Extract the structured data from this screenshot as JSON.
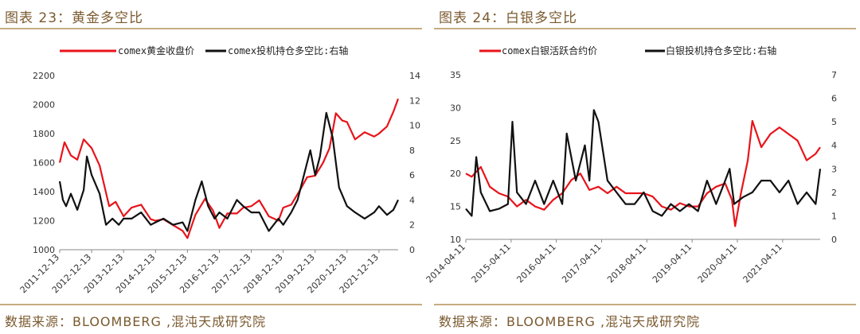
{
  "chart_data": [
    {
      "type": "line",
      "figure_title": "图表 23：黄金多空比",
      "source": "数据来源：BLOOMBERG ,混沌天成研究院",
      "legend_position": "top",
      "series": [
        {
          "name": "comex黄金收盘价",
          "axis": "left",
          "color": "#e8141b",
          "x": [
            2011.95,
            2012.1,
            2012.3,
            2012.5,
            2012.7,
            2012.95,
            2013.2,
            2013.5,
            2013.7,
            2013.95,
            2014.2,
            2014.5,
            2014.8,
            2014.95,
            2015.2,
            2015.5,
            2015.8,
            2015.95,
            2016.2,
            2016.5,
            2016.75,
            2016.95,
            2017.2,
            2017.5,
            2017.7,
            2017.95,
            2018.2,
            2018.5,
            2018.8,
            2018.95,
            2019.2,
            2019.5,
            2019.7,
            2019.95,
            2020.2,
            2020.4,
            2020.6,
            2020.8,
            2020.95,
            2021.2,
            2021.5,
            2021.8,
            2021.95,
            2022.2,
            2022.4,
            2022.55
          ],
          "values": [
            1600,
            1740,
            1650,
            1620,
            1760,
            1700,
            1580,
            1300,
            1330,
            1230,
            1290,
            1310,
            1210,
            1200,
            1210,
            1170,
            1130,
            1080,
            1240,
            1350,
            1270,
            1150,
            1250,
            1250,
            1290,
            1300,
            1340,
            1230,
            1200,
            1290,
            1310,
            1420,
            1500,
            1510,
            1600,
            1700,
            1940,
            1890,
            1880,
            1760,
            1810,
            1780,
            1800,
            1850,
            1950,
            2040
          ]
        },
        {
          "name": "comex投机持仓多空比:右轴",
          "axis": "right",
          "color": "#111111",
          "x": [
            2011.95,
            2012.05,
            2012.15,
            2012.3,
            2012.5,
            2012.7,
            2012.8,
            2012.95,
            2013.2,
            2013.4,
            2013.6,
            2013.8,
            2013.95,
            2014.2,
            2014.5,
            2014.8,
            2014.95,
            2015.2,
            2015.5,
            2015.8,
            2015.95,
            2016.2,
            2016.4,
            2016.6,
            2016.8,
            2016.95,
            2017.2,
            2017.5,
            2017.7,
            2017.95,
            2018.2,
            2018.5,
            2018.8,
            2018.95,
            2019.2,
            2019.4,
            2019.6,
            2019.8,
            2019.95,
            2020.1,
            2020.3,
            2020.5,
            2020.7,
            2020.95,
            2021.2,
            2021.5,
            2021.8,
            2021.95,
            2022.2,
            2022.4,
            2022.55
          ],
          "values": [
            5.5,
            4.0,
            3.5,
            4.5,
            3.2,
            4.8,
            7.5,
            6.0,
            4.5,
            2.0,
            2.5,
            2.0,
            2.5,
            2.5,
            3.0,
            2.0,
            2.2,
            2.5,
            2.0,
            2.2,
            1.5,
            4.0,
            5.5,
            3.5,
            2.5,
            3.0,
            2.5,
            4.0,
            3.5,
            3.0,
            3.0,
            1.5,
            2.5,
            2.0,
            3.0,
            4.0,
            6.0,
            8.0,
            6.0,
            7.5,
            11.0,
            9.0,
            5.0,
            3.5,
            3.0,
            2.5,
            3.0,
            3.5,
            2.8,
            3.2,
            4.0
          ]
        }
      ],
      "x_ticks": [
        "2011-12-13",
        "2012-12-13",
        "2013-12-13",
        "2014-12-13",
        "2015-12-13",
        "2016-12-13",
        "2017-12-13",
        "2018-12-13",
        "2019-12-13",
        "2020-12-13",
        "2021-12-13"
      ],
      "x_tick_values": [
        2011.95,
        2012.95,
        2013.95,
        2014.95,
        2015.95,
        2016.95,
        2017.95,
        2018.95,
        2019.95,
        2020.95,
        2021.95
      ],
      "x_range": [
        2011.95,
        2022.55
      ],
      "y_left_ticks": [
        1000,
        1200,
        1400,
        1600,
        1800,
        2000,
        2200
      ],
      "y_left_range": [
        1000,
        2200
      ],
      "y_right_ticks": [
        0,
        2,
        4,
        6,
        8,
        10,
        12,
        14
      ],
      "y_right_range": [
        0,
        14
      ]
    },
    {
      "type": "line",
      "figure_title": "图表 24：白银多空比",
      "source": "数据来源：BLOOMBERG ,混沌天成研究院",
      "legend_position": "top",
      "series": [
        {
          "name": "comex白银活跃合约价",
          "axis": "left",
          "color": "#e8141b",
          "x": [
            2014.27,
            2014.4,
            2014.6,
            2014.8,
            2015.0,
            2015.2,
            2015.4,
            2015.6,
            2015.8,
            2016.0,
            2016.2,
            2016.4,
            2016.6,
            2016.8,
            2017.0,
            2017.2,
            2017.4,
            2017.6,
            2017.8,
            2018.0,
            2018.2,
            2018.4,
            2018.6,
            2018.8,
            2019.0,
            2019.2,
            2019.4,
            2019.6,
            2019.8,
            2020.0,
            2020.15,
            2020.22,
            2020.35,
            2020.5,
            2020.6,
            2020.8,
            2021.0,
            2021.2,
            2021.4,
            2021.6,
            2021.8,
            2022.0,
            2022.1
          ],
          "values": [
            20,
            19.5,
            21,
            18,
            17,
            16.5,
            15,
            16,
            15,
            14.5,
            16,
            17,
            19,
            20,
            17.5,
            18,
            17,
            18,
            17,
            17,
            17,
            16.5,
            15,
            14.5,
            15.5,
            15,
            15,
            17,
            18,
            18.5,
            16,
            12,
            17,
            22,
            28,
            24,
            26,
            27,
            26,
            25,
            22,
            23,
            24
          ]
        },
        {
          "name": "白银投机持仓多空比:右轴",
          "axis": "right",
          "color": "#111111",
          "x": [
            2014.27,
            2014.4,
            2014.5,
            2014.6,
            2014.8,
            2015.0,
            2015.2,
            2015.3,
            2015.4,
            2015.6,
            2015.8,
            2016.0,
            2016.2,
            2016.4,
            2016.5,
            2016.7,
            2016.9,
            2017.0,
            2017.1,
            2017.2,
            2017.4,
            2017.6,
            2017.8,
            2018.0,
            2018.2,
            2018.4,
            2018.6,
            2018.8,
            2019.0,
            2019.2,
            2019.4,
            2019.6,
            2019.8,
            2020.0,
            2020.1,
            2020.2,
            2020.4,
            2020.6,
            2020.8,
            2021.0,
            2021.2,
            2021.4,
            2021.6,
            2021.8,
            2022.0,
            2022.1
          ],
          "values": [
            1.3,
            1.0,
            3.5,
            2.0,
            1.2,
            1.3,
            1.5,
            5.0,
            2.0,
            1.5,
            2.5,
            1.5,
            2.5,
            1.5,
            4.5,
            2.5,
            4.0,
            2.5,
            5.5,
            5.0,
            2.5,
            2.0,
            1.5,
            1.5,
            2.0,
            1.2,
            1.0,
            1.5,
            1.2,
            1.5,
            1.2,
            2.5,
            1.5,
            2.5,
            3.0,
            1.5,
            1.8,
            2.0,
            2.5,
            2.5,
            2.0,
            2.5,
            1.5,
            2.0,
            1.5,
            3.0
          ]
        }
      ],
      "x_ticks": [
        "2014-04-11",
        "2015-04-11",
        "2016-04-11",
        "2017-04-11",
        "2018-04-11",
        "2019-04-11",
        "2020-04-11",
        "2021-04-11"
      ],
      "x_tick_values": [
        2014.27,
        2015.27,
        2016.27,
        2017.27,
        2018.27,
        2019.27,
        2020.27,
        2021.27
      ],
      "x_range": [
        2014.27,
        2022.1
      ],
      "y_left_ticks": [
        10,
        15,
        20,
        25,
        30,
        35
      ],
      "y_left_range": [
        10,
        35
      ],
      "y_right_ticks": [
        0,
        1,
        2,
        3,
        4,
        5,
        6,
        7
      ],
      "y_right_range": [
        0,
        7
      ]
    }
  ]
}
